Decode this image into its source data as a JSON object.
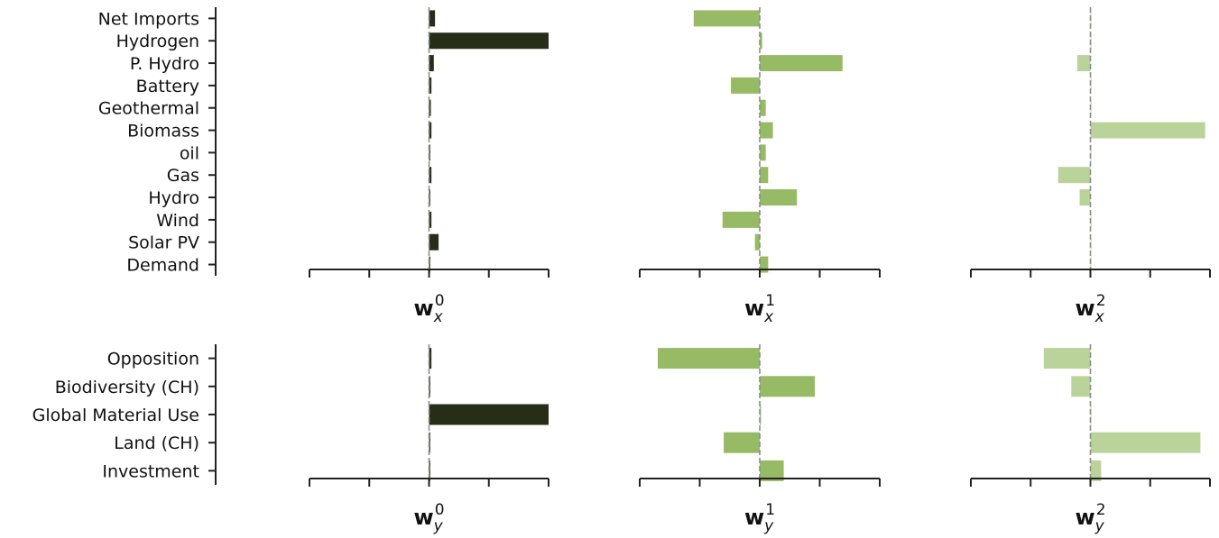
{
  "chart_data": [
    {
      "type": "bar",
      "orientation": "horizontal",
      "categories": [
        "Net Imports",
        "Hydrogen",
        "P. Hydro",
        "Battery",
        "Geothermal",
        "Biomass",
        "oil",
        "Gas",
        "Hydro",
        "Wind",
        "Solar PV",
        "Demand"
      ],
      "panels": [
        {
          "xlabel_base": "w",
          "xlabel_sub": "x",
          "xlabel_sup": "0",
          "color": "#262e18",
          "xlim": [
            -1,
            1
          ],
          "values": [
            0.05,
            1.0,
            0.04,
            0.02,
            0.015,
            0.02,
            0.01,
            0.02,
            0.01,
            0.02,
            0.08,
            0.01
          ]
        },
        {
          "xlabel_base": "w",
          "xlabel_sub": "x",
          "xlabel_sup": "1",
          "color": "#97ba64",
          "xlim": [
            -1,
            1
          ],
          "values": [
            -0.55,
            0.02,
            0.69,
            -0.24,
            0.05,
            0.11,
            0.05,
            0.07,
            0.31,
            -0.31,
            -0.04,
            0.07
          ]
        },
        {
          "xlabel_base": "w",
          "xlabel_sub": "x",
          "xlabel_sup": "2",
          "color": "#bad39b",
          "xlim": [
            -1,
            1
          ],
          "values": [
            0.005,
            0.005,
            -0.11,
            0.005,
            0.005,
            0.96,
            0.005,
            -0.27,
            -0.09,
            0.005,
            0.005,
            0.005
          ]
        }
      ]
    },
    {
      "type": "bar",
      "orientation": "horizontal",
      "categories": [
        "Opposition",
        "Biodiversity (CH)",
        "Global Material Use",
        "Land (CH)",
        "Investment"
      ],
      "panels": [
        {
          "xlabel_base": "w",
          "xlabel_sub": "y",
          "xlabel_sup": "0",
          "color": "#262e18",
          "xlim": [
            -1,
            1
          ],
          "values": [
            0.02,
            0.01,
            1.0,
            0.01,
            0.01
          ]
        },
        {
          "xlabel_base": "w",
          "xlabel_sub": "y",
          "xlabel_sup": "1",
          "color": "#97ba64",
          "xlim": [
            -1,
            1
          ],
          "values": [
            -0.85,
            0.46,
            0.01,
            -0.3,
            0.2
          ]
        },
        {
          "xlabel_base": "w",
          "xlabel_sub": "y",
          "xlabel_sup": "2",
          "color": "#bad39b",
          "xlim": [
            -1,
            1
          ],
          "values": [
            -0.39,
            -0.16,
            0.005,
            0.92,
            0.09
          ]
        }
      ]
    }
  ]
}
